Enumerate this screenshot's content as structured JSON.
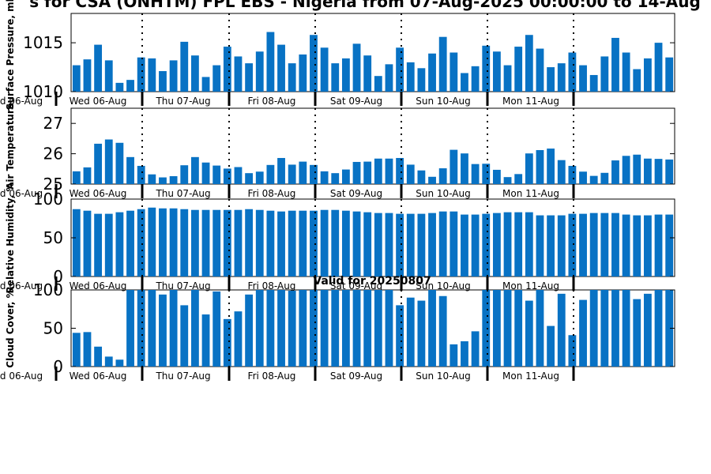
{
  "title": "s for CSA (ONHTM) FPL EBS - Nigeria from 07-Aug-2025 00:00:00 to 14-Aug",
  "valid_label": "Valid for 20250807",
  "colors": {
    "bar": "#0872c4",
    "axis": "#000000",
    "divider": "#000000"
  },
  "chart_data": [
    {
      "type": "bar",
      "ylabel": "Surface Pressure, mb",
      "ylim": [
        1010,
        1018
      ],
      "yticks": [
        1010,
        1015
      ],
      "day_labels": [
        "d 06-Aug",
        "Wed 06-Aug",
        "Thu 07-Aug",
        "Fri 08-Aug",
        "Sat 09-Aug",
        "Sun 10-Aug",
        "Mon 11-Aug"
      ],
      "values": [
        1012.7,
        1013.3,
        1014.8,
        1013.2,
        1010.9,
        1011.2,
        1013.5,
        1013.4,
        1012.1,
        1013.2,
        1015.1,
        1013.7,
        1011.5,
        1012.7,
        1014.6,
        1013.6,
        1012.9,
        1014.1,
        1016.1,
        1014.8,
        1012.9,
        1013.8,
        1015.8,
        1014.5,
        1012.9,
        1013.4,
        1014.9,
        1013.7,
        1011.6,
        1012.8,
        1014.5,
        1013.0,
        1012.4,
        1013.9,
        1015.6,
        1014.0,
        1011.9,
        1012.6,
        1014.7,
        1014.1,
        1012.7,
        1014.6,
        1015.8,
        1014.4,
        1012.5,
        1012.9,
        1014.0,
        1012.7,
        1011.7,
        1013.6,
        1015.5,
        1014.0,
        1012.3,
        1013.4,
        1015.0,
        1013.5
      ]
    },
    {
      "type": "bar",
      "ylabel": "Air Temperature",
      "ylim": [
        25,
        27.5
      ],
      "yticks": [
        25,
        26,
        27
      ],
      "day_labels": [
        "d 06-Aug",
        "Wed 06-Aug",
        "Thu 07-Aug",
        "Fri 08-Aug",
        "Sat 09-Aug",
        "Sun 10-Aug",
        "Mon 11-Aug"
      ],
      "values": [
        25.42,
        25.55,
        26.33,
        26.47,
        26.36,
        25.89,
        25.6,
        25.32,
        25.22,
        25.26,
        25.62,
        25.89,
        25.71,
        25.61,
        25.51,
        25.56,
        25.36,
        25.41,
        25.63,
        25.86,
        25.64,
        25.74,
        25.63,
        25.42,
        25.36,
        25.48,
        25.73,
        25.74,
        25.84,
        25.84,
        25.86,
        25.64,
        25.45,
        25.24,
        25.52,
        26.13,
        26.01,
        25.66,
        25.67,
        25.47,
        25.23,
        25.33,
        26.01,
        26.12,
        26.17,
        25.79,
        25.6,
        25.41,
        25.27,
        25.37,
        25.78,
        25.93,
        25.97,
        25.84,
        25.83,
        25.81
      ]
    },
    {
      "type": "bar",
      "ylabel": "Relative Humidity, %",
      "ylim": [
        0,
        100
      ],
      "yticks": [
        0,
        50,
        100
      ],
      "day_labels": [
        "d 06-Aug",
        "Wed 06-Aug",
        "Thu 07-Aug",
        "Fri 08-Aug",
        "Sat 09-Aug",
        "Sun 10-Aug",
        "Mon 11-Aug"
      ],
      "values": [
        87,
        85,
        81,
        81,
        83,
        85,
        87,
        89,
        88,
        88,
        87,
        86,
        86,
        86,
        86,
        86,
        87,
        86,
        85,
        84,
        85,
        85,
        85,
        86,
        86,
        85,
        84,
        83,
        82,
        82,
        81,
        81,
        81,
        82,
        84,
        84,
        80,
        80,
        81,
        82,
        83,
        83,
        83,
        79,
        79,
        79,
        81,
        81,
        82,
        82,
        82,
        80,
        79,
        79,
        80,
        80
      ]
    },
    {
      "type": "bar",
      "ylabel": "Cloud Cover, %",
      "ylim": [
        0,
        100
      ],
      "yticks": [
        0,
        50,
        100
      ],
      "day_labels": [
        "d 06-Aug",
        "Wed 06-Aug",
        "Thu 07-Aug",
        "Fri 08-Aug",
        "Sat 09-Aug",
        "Sun 10-Aug",
        "Mon 11-Aug"
      ],
      "values": [
        44,
        45,
        26,
        13,
        9,
        100,
        100,
        100,
        94,
        100,
        80,
        100,
        68,
        98,
        62,
        72,
        94,
        100,
        100,
        100,
        99,
        100,
        100,
        100,
        100,
        100,
        100,
        100,
        100,
        100,
        80,
        90,
        86,
        100,
        92,
        29,
        33,
        46,
        100,
        100,
        100,
        100,
        86,
        100,
        53,
        95,
        41,
        87,
        100,
        100,
        100,
        100,
        88,
        95,
        100,
        100
      ]
    }
  ]
}
